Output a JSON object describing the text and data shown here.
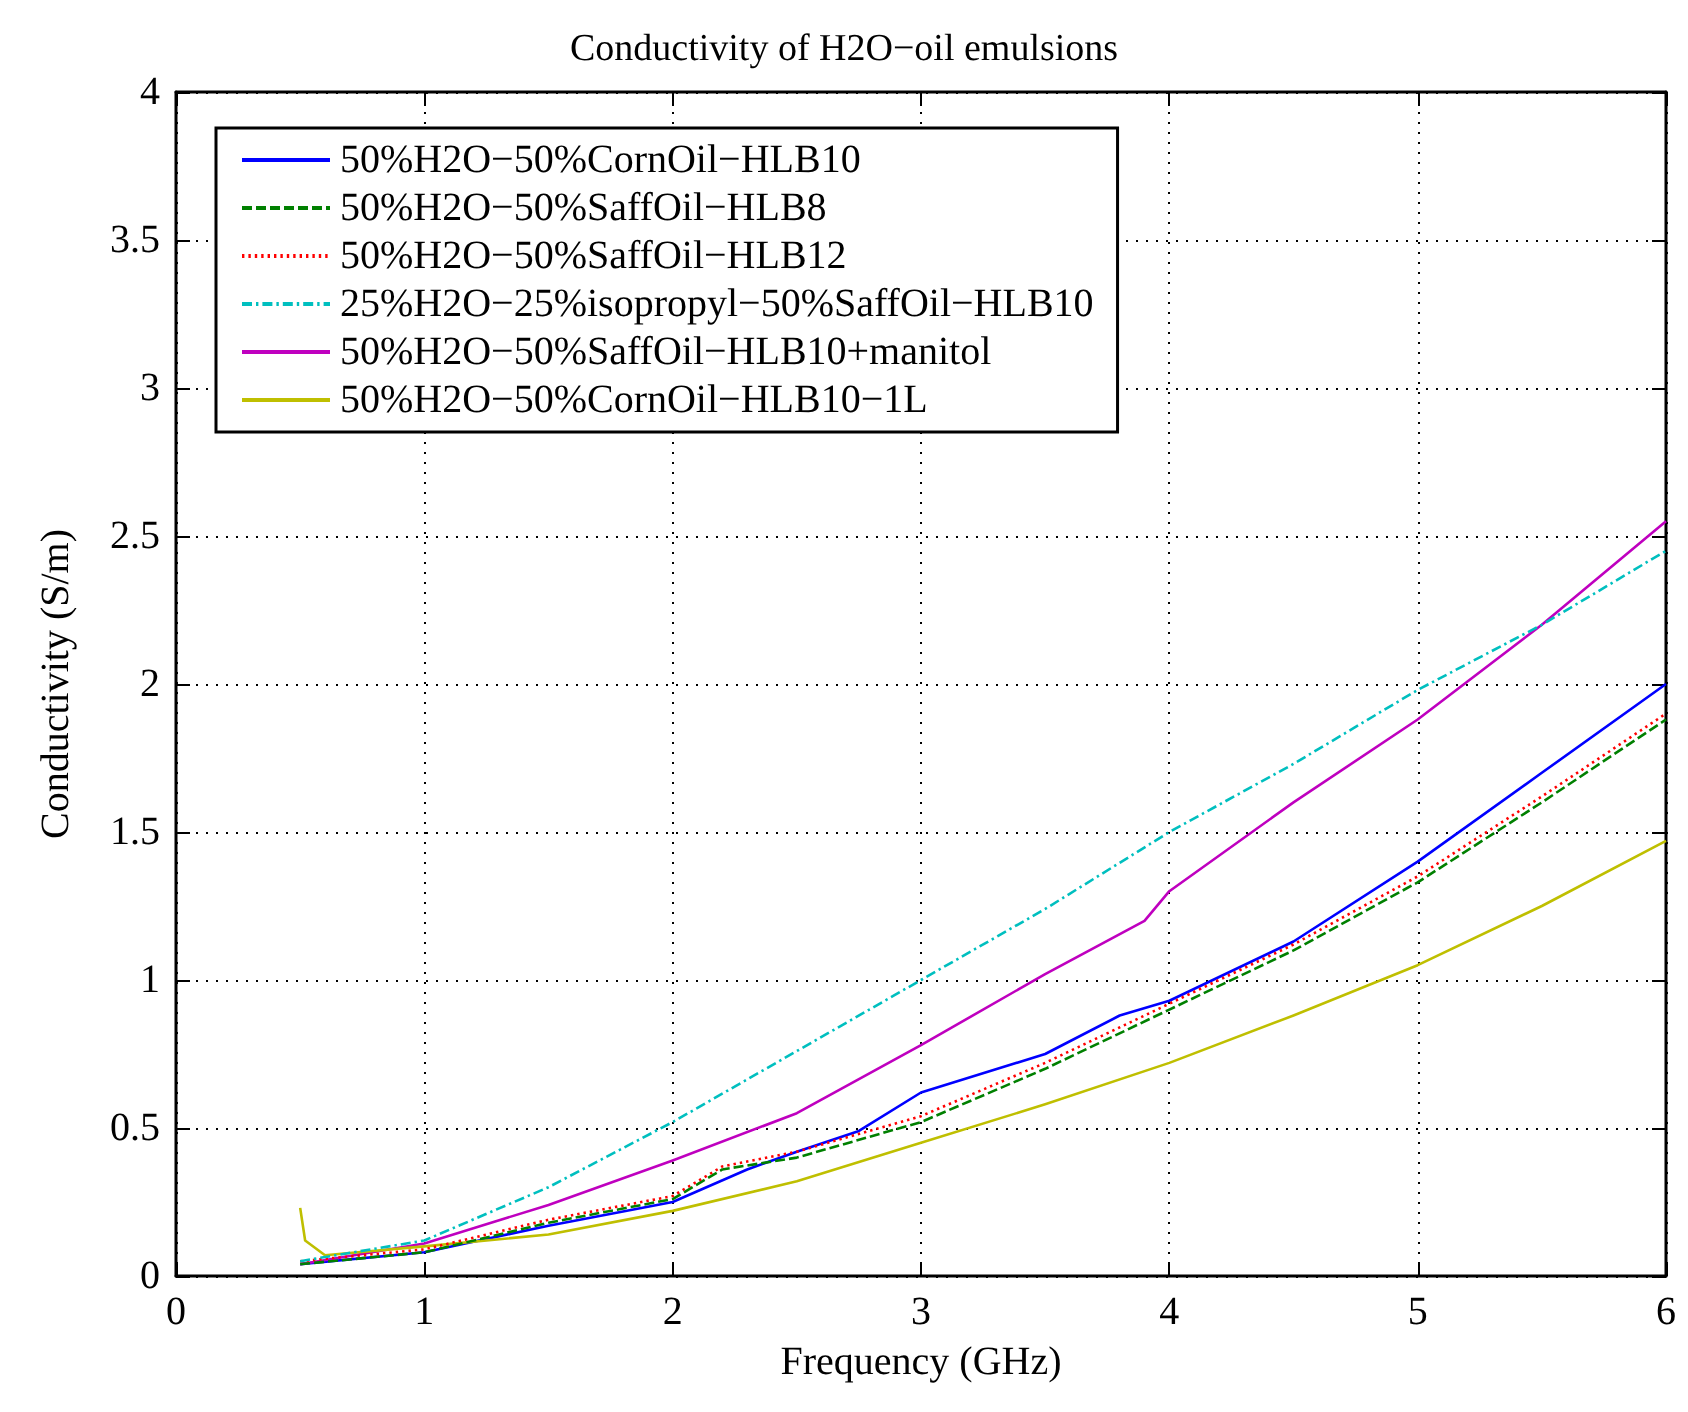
{
  "chart_data": {
    "type": "line",
    "title": "Conductivity of H2O−oil emulsions",
    "xlabel": "Frequency (GHz)",
    "ylabel": "Conductivity (S/m)",
    "xlim": [
      0,
      6
    ],
    "xticks": [
      0,
      1,
      2,
      3,
      4,
      5,
      6
    ],
    "ylim": [
      0,
      4
    ],
    "yticks": [
      0,
      0.5,
      1,
      1.5,
      2,
      2.5,
      3,
      3.5,
      4
    ],
    "grid": true,
    "legend": "top left",
    "marker": "none",
    "series": [
      {
        "name": "50%H2O−50%CornOil−HLB10",
        "color": "#0000ff",
        "line_style": "solid",
        "x": [
          0.5,
          1,
          1.5,
          2,
          2.3,
          2.5,
          2.75,
          3,
          3.5,
          3.8,
          4,
          4.5,
          5,
          5.5,
          6
        ],
        "values": [
          0.04,
          0.08,
          0.17,
          0.25,
          0.36,
          0.42,
          0.49,
          0.62,
          0.75,
          0.88,
          0.93,
          1.13,
          1.4,
          1.7,
          2.0
        ]
      },
      {
        "name": "50%H2O−50%SaffOil−HLB8",
        "color": "#008000",
        "line_style": "dashed",
        "x": [
          0.5,
          1,
          1.5,
          2,
          2.2,
          2.5,
          3,
          3.5,
          4,
          4.5,
          5,
          5.5,
          6
        ],
        "values": [
          0.04,
          0.08,
          0.18,
          0.26,
          0.36,
          0.4,
          0.52,
          0.7,
          0.9,
          1.1,
          1.33,
          1.6,
          1.88
        ]
      },
      {
        "name": "50%H2O−50%SaffOil−HLB12",
        "color": "#ff0000",
        "line_style": "dotted",
        "x": [
          0.5,
          1,
          1.5,
          2,
          2.2,
          2.5,
          3,
          3.5,
          4,
          4.5,
          5,
          5.5,
          6
        ],
        "values": [
          0.05,
          0.09,
          0.19,
          0.27,
          0.37,
          0.42,
          0.54,
          0.72,
          0.92,
          1.12,
          1.35,
          1.62,
          1.9
        ]
      },
      {
        "name": "25%H2O−25%isopropyl−50%SaffOil−HLB10",
        "color": "#00bfbf",
        "line_style": "dashdot",
        "x": [
          0.5,
          1,
          1.5,
          2,
          2.5,
          3,
          3.5,
          4,
          4.5,
          5,
          5.5,
          6
        ],
        "values": [
          0.05,
          0.12,
          0.3,
          0.52,
          0.76,
          1.0,
          1.24,
          1.5,
          1.73,
          1.98,
          2.2,
          2.45
        ]
      },
      {
        "name": "50%H2O−50%SaffOil−HLB10+manitol",
        "color": "#bf00bf",
        "line_style": "solid",
        "x": [
          0.5,
          1,
          1.5,
          2,
          2.5,
          3,
          3.5,
          3.9,
          4,
          4.5,
          5,
          5.5,
          6
        ],
        "values": [
          0.04,
          0.11,
          0.24,
          0.39,
          0.55,
          0.78,
          1.02,
          1.2,
          1.3,
          1.6,
          1.88,
          2.2,
          2.55
        ]
      },
      {
        "name": "50%H2O−50%CornOil−HLB10−1L",
        "color": "#bfbf00",
        "line_style": "solid",
        "x": [
          0.5,
          0.52,
          0.6,
          1,
          1.5,
          2,
          2.5,
          3,
          3.5,
          4,
          4.5,
          5,
          5.5,
          6
        ],
        "values": [
          0.23,
          0.12,
          0.07,
          0.1,
          0.14,
          0.22,
          0.32,
          0.45,
          0.58,
          0.72,
          0.88,
          1.05,
          1.25,
          1.47
        ]
      }
    ]
  }
}
